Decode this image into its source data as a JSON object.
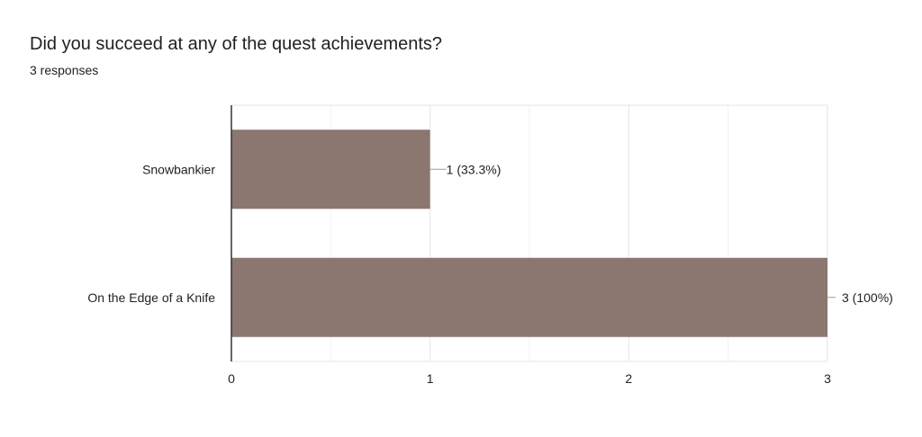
{
  "question": {
    "title": "Did you succeed at any of the quest achievements?",
    "responses": "3 responses"
  },
  "colors": {
    "bar": "#8b7770",
    "grid": "#e6e6e6",
    "axis": "#333333",
    "connector": "#9e9e9e"
  },
  "chart_data": {
    "type": "bar",
    "orientation": "horizontal",
    "categories": [
      "Snowbankier",
      "On the Edge of a Knife"
    ],
    "values": [
      1,
      3
    ],
    "data_labels": [
      "1 (33.3%)",
      "3 (100%)"
    ],
    "xlim": [
      0,
      3
    ],
    "xticks": [
      0,
      1,
      2,
      3
    ],
    "xtick_labels": [
      "0",
      "1",
      "2",
      "3"
    ],
    "grid": true,
    "legend": "none"
  }
}
